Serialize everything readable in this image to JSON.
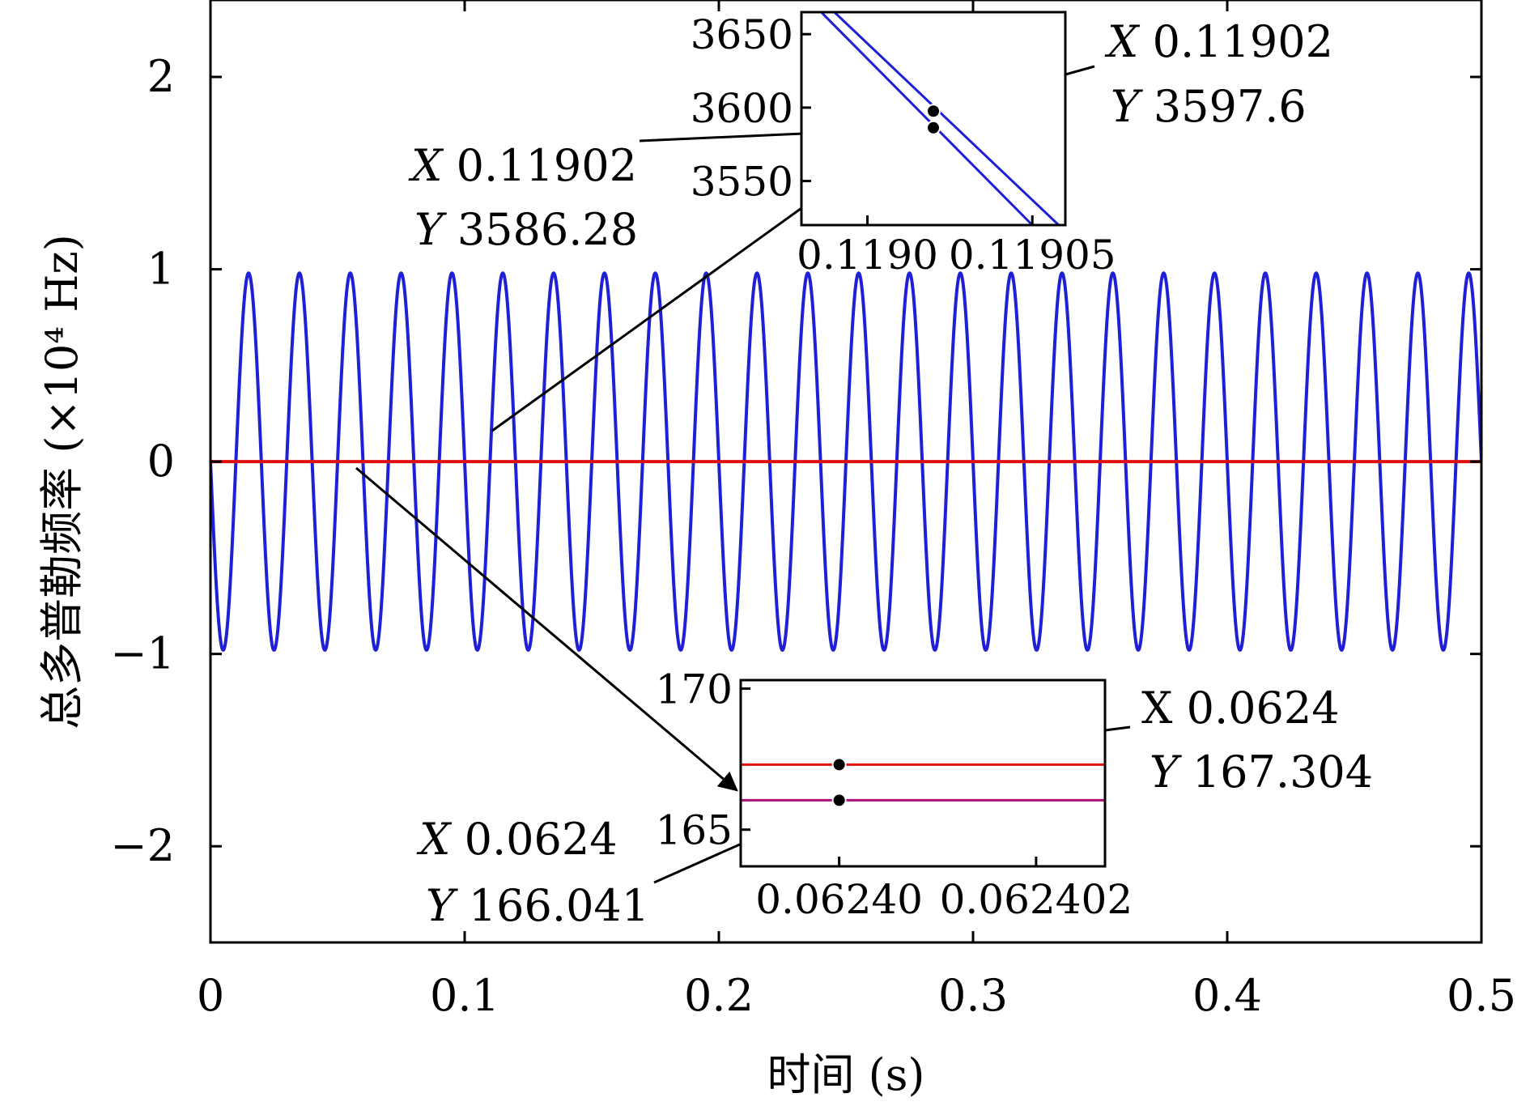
{
  "chart_data": {
    "type": "line",
    "xlabel": "时间 (s)",
    "ylabel": "总多普勒频率 (×10⁴ Hz)",
    "xlim": [
      0,
      0.5
    ],
    "ylim": [
      -2.5,
      2.4
    ],
    "x_ticks": [
      {
        "value": 0,
        "label": "0"
      },
      {
        "value": 0.1,
        "label": "0.1"
      },
      {
        "value": 0.2,
        "label": "0.2"
      },
      {
        "value": 0.3,
        "label": "0.3"
      },
      {
        "value": 0.4,
        "label": "0.4"
      },
      {
        "value": 0.5,
        "label": "0.5"
      }
    ],
    "y_ticks": [
      {
        "value": 2,
        "label": "2"
      },
      {
        "value": 1,
        "label": "1"
      },
      {
        "value": 0,
        "label": "0"
      },
      {
        "value": -1,
        "label": "−1"
      },
      {
        "value": -2,
        "label": "−2"
      }
    ],
    "series": [
      {
        "color": "#1f1fd6",
        "shape": "sinusoid",
        "amplitude": 0.98,
        "frequency_hz": 50,
        "x_range": [
          0,
          0.5
        ]
      },
      {
        "color": "#e01010",
        "shape": "near-constant",
        "value": 0.0,
        "x_range": [
          0,
          0.5
        ]
      }
    ],
    "insets": [
      {
        "xlim": [
          0.11898,
          0.11906
        ],
        "ylim": [
          3520,
          3665
        ],
        "x_ticks": [
          {
            "value": 0.119,
            "label": "0.1190"
          },
          {
            "value": 0.11905,
            "label": "0.11905"
          }
        ],
        "y_ticks": [
          {
            "value": 3650,
            "label": "3650"
          },
          {
            "value": 3600,
            "label": "3600"
          },
          {
            "value": 3550,
            "label": "3550"
          }
        ],
        "lines": [
          {
            "color": "#1f1fd6",
            "points": [
              [
                0.118986,
                3665
              ],
              [
                0.11905,
                3520
              ]
            ]
          },
          {
            "color": "#1f1fd6",
            "points": [
              [
                0.11899,
                3665
              ],
              [
                0.119058,
                3520
              ]
            ]
          }
        ],
        "markers": [
          {
            "x": 0.11902,
            "y": 3597.6
          },
          {
            "x": 0.11902,
            "y": 3586.28
          }
        ]
      },
      {
        "xlim": [
          0.062399,
          0.0624027
        ],
        "ylim": [
          163.7,
          170.3
        ],
        "x_ticks": [
          {
            "value": 0.0624,
            "label": "0.06240"
          },
          {
            "value": 0.062402,
            "label": "0.062402"
          }
        ],
        "y_ticks": [
          {
            "value": 170,
            "label": "170"
          },
          {
            "value": 165,
            "label": "165"
          }
        ],
        "lines": [
          {
            "color": "#e01010",
            "points": [
              [
                0.062399,
                167.304
              ],
              [
                0.0624027,
                167.304
              ]
            ]
          },
          {
            "color": "#b0107a",
            "points": [
              [
                0.062399,
                166.041
              ],
              [
                0.0624027,
                166.041
              ]
            ]
          }
        ],
        "markers": [
          {
            "x": 0.0624,
            "y": 167.304
          },
          {
            "x": 0.0624,
            "y": 166.041
          }
        ]
      }
    ],
    "annotations": [
      {
        "x_prefix": "X",
        "x_text": "0.11902",
        "y_prefix": "Y",
        "y_text": "3597.6"
      },
      {
        "x_prefix": "X",
        "x_text": "0.11902",
        "y_prefix": "Y",
        "y_text": "3586.28"
      },
      {
        "x_prefix": "X",
        "x_text": "0.0624",
        "y_prefix": "Y",
        "y_text": "167.304"
      },
      {
        "x_prefix": "X",
        "x_text": "0.0624",
        "y_prefix": "Y",
        "y_text": "166.041"
      }
    ]
  }
}
